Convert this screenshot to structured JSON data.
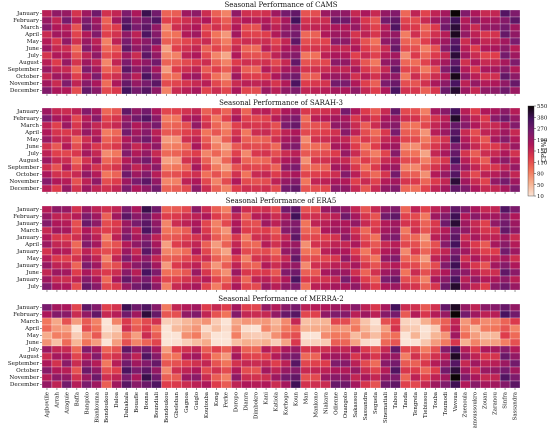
{
  "chart_data": [
    {
      "type": "heatmap",
      "title": "Seasonal Performance of CAMS",
      "rows": [
        "January",
        "February",
        "March",
        "April",
        "May",
        "June",
        "July",
        "August",
        "September",
        "October",
        "November",
        "December"
      ]
    },
    {
      "type": "heatmap",
      "title": "Seasonal Performance of SARAH-3",
      "rows": [
        "January",
        "February",
        "March",
        "April",
        "May",
        "June",
        "July",
        "August",
        "September",
        "October",
        "November",
        "December"
      ]
    },
    {
      "type": "heatmap",
      "title": "Seasonal Performance of ERA5",
      "rows": [
        "January",
        "February",
        "January",
        "March",
        "January",
        "April",
        "January",
        "May",
        "January",
        "June",
        "January",
        "July"
      ]
    },
    {
      "type": "heatmap",
      "title": "Seasonal Performance of MERRA-2",
      "rows": [
        "January",
        "February",
        "March",
        "April",
        "May",
        "June",
        "July",
        "August",
        "September",
        "October",
        "November",
        "December"
      ]
    }
  ],
  "stations": [
    "Agboville",
    "Arrah",
    "Azaguie",
    "Baffa",
    "Bangolo",
    "Biankouma",
    "Bondoukou",
    "Daloa",
    "Dabakala",
    "Bouafle",
    "Bouna",
    "Boundiali",
    "Bondoukou",
    "Gbeleban",
    "Gagnoa",
    "Guiglo",
    "Koutouba",
    "Kong",
    "Ferke",
    "Doropo",
    "Dianra",
    "Dimbokro",
    "Kani",
    "Katiola",
    "Korhogo",
    "Koun",
    "Man",
    "Mankono",
    "Niakara",
    "Odienne",
    "Ouangolo",
    "Sakassou",
    "Sassandra",
    "Seguela",
    "Sinematiali",
    "Tabou",
    "Tanda",
    "Tengrela",
    "Tiebissou",
    "Touba",
    "Toumodi",
    "Vavoua",
    "Zuenoula",
    "Yamoussoukro",
    "Zouan",
    "Zaranou",
    "Sinfra",
    "Sassandra"
  ],
  "colorbar": {
    "label": "CPI [%]",
    "ticks": [
      "550",
      "380",
      "270",
      "190",
      "150",
      "110",
      "80",
      "50",
      "10"
    ],
    "min": 10,
    "max": 550,
    "colors": [
      "#fbe4d6",
      "#f6b08f",
      "#f1745a",
      "#dd3b4b",
      "#ae1759",
      "#7a1b6d",
      "#45125e",
      "#0b0405"
    ]
  }
}
